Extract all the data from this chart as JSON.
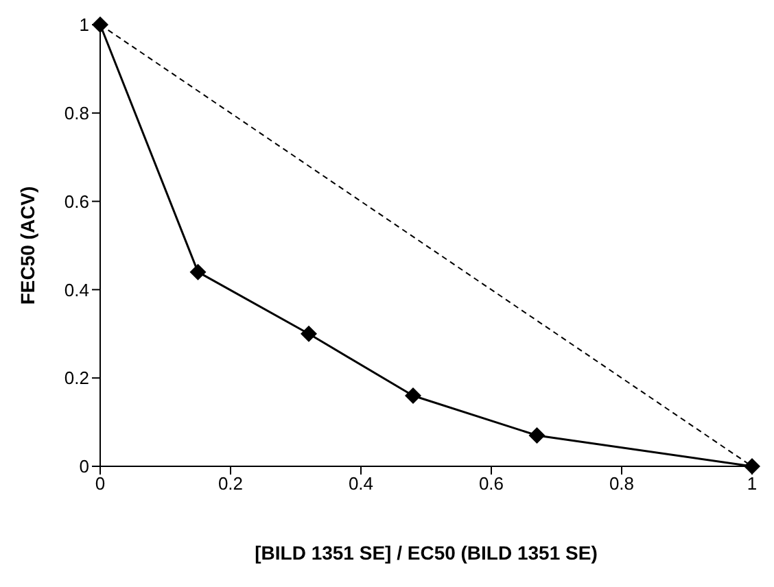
{
  "chart_data": {
    "type": "line",
    "xlabel": "[BILD 1351 SE] / EC50  (BILD 1351 SE)",
    "ylabel": "FEC50  (ACV)",
    "xlim": [
      0,
      1
    ],
    "ylim": [
      0,
      1
    ],
    "xticks": [
      0,
      0.2,
      0.4,
      0.6,
      0.8,
      1
    ],
    "yticks": [
      0,
      0.2,
      0.4,
      0.6,
      0.8,
      1
    ],
    "grid": false,
    "series": [
      {
        "color": "#000000",
        "x": [
          0,
          0.15,
          0.32,
          0.48,
          0.67,
          1
        ],
        "values": [
          1,
          0.44,
          0.3,
          0.16,
          0.07,
          0
        ],
        "marker": "diamond",
        "line_style": "solid"
      },
      {
        "color": "#000000",
        "x": [
          0,
          1
        ],
        "values": [
          1,
          0
        ],
        "marker": "none",
        "line_style": "dashed"
      }
    ]
  }
}
